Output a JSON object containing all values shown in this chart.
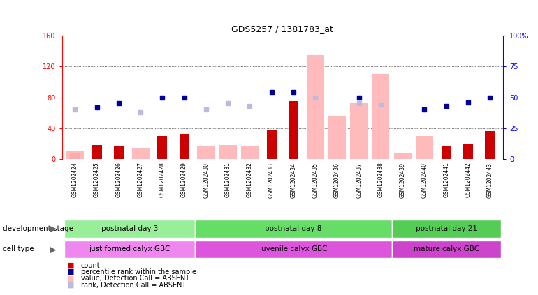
{
  "title": "GDS5257 / 1381783_at",
  "samples": [
    "GSM1202424",
    "GSM1202425",
    "GSM1202426",
    "GSM1202427",
    "GSM1202428",
    "GSM1202429",
    "GSM1202430",
    "GSM1202431",
    "GSM1202432",
    "GSM1202433",
    "GSM1202434",
    "GSM1202435",
    "GSM1202436",
    "GSM1202437",
    "GSM1202438",
    "GSM1202439",
    "GSM1202440",
    "GSM1202441",
    "GSM1202442",
    "GSM1202443"
  ],
  "count_absent": [
    8,
    0,
    0,
    0,
    0,
    0,
    0,
    0,
    0,
    0,
    0,
    0,
    0,
    0,
    0,
    0,
    0,
    0,
    0,
    0
  ],
  "count_present": [
    0,
    18,
    17,
    0,
    30,
    33,
    0,
    0,
    0,
    37,
    75,
    0,
    0,
    0,
    0,
    0,
    0,
    17,
    20,
    36
  ],
  "value_absent": [
    10,
    0,
    0,
    15,
    0,
    0,
    17,
    18,
    17,
    0,
    0,
    135,
    55,
    72,
    110,
    8,
    30,
    0,
    0,
    0
  ],
  "rank_absent_pct": [
    40,
    0,
    0,
    38,
    0,
    0,
    40,
    45,
    43,
    0,
    0,
    50,
    0,
    45,
    44,
    0,
    0,
    0,
    0,
    0
  ],
  "percentile_rank": [
    0,
    42,
    45,
    0,
    50,
    50,
    0,
    0,
    0,
    54,
    54,
    0,
    0,
    50,
    0,
    0,
    40,
    43,
    46,
    50
  ],
  "ylim_left": [
    0,
    160
  ],
  "ylim_right": [
    0,
    100
  ],
  "yticks_left": [
    0,
    40,
    80,
    120,
    160
  ],
  "ytick_labels_left": [
    "0",
    "40",
    "80",
    "120",
    "160"
  ],
  "yticks_right": [
    0,
    25,
    50,
    75,
    100
  ],
  "ytick_labels_right": [
    "0",
    "25",
    "50",
    "75",
    "100%"
  ],
  "color_count_present": "#cc0000",
  "color_count_absent": "#ffaaaa",
  "color_percentile": "#000099",
  "color_value_absent": "#ffbbbb",
  "color_rank_absent": "#bbbbdd",
  "dev_stage_groups": [
    {
      "label": "postnatal day 3",
      "start": 0,
      "end": 5,
      "color": "#99ee99"
    },
    {
      "label": "postnatal day 8",
      "start": 6,
      "end": 14,
      "color": "#66dd66"
    },
    {
      "label": "postnatal day 21",
      "start": 15,
      "end": 19,
      "color": "#55cc55"
    }
  ],
  "cell_type_groups": [
    {
      "label": "just formed calyx GBC",
      "start": 0,
      "end": 5,
      "color": "#ee88ee"
    },
    {
      "label": "juvenile calyx GBC",
      "start": 6,
      "end": 14,
      "color": "#dd55dd"
    },
    {
      "label": "mature calyx GBC",
      "start": 15,
      "end": 19,
      "color": "#cc44cc"
    }
  ],
  "dev_stage_label": "development stage",
  "cell_type_label": "cell type",
  "legend_items": [
    {
      "label": "count",
      "color": "#cc0000"
    },
    {
      "label": "percentile rank within the sample",
      "color": "#000099"
    },
    {
      "label": "value, Detection Call = ABSENT",
      "color": "#ffbbbb"
    },
    {
      "label": "rank, Detection Call = ABSENT",
      "color": "#bbbbdd"
    }
  ]
}
